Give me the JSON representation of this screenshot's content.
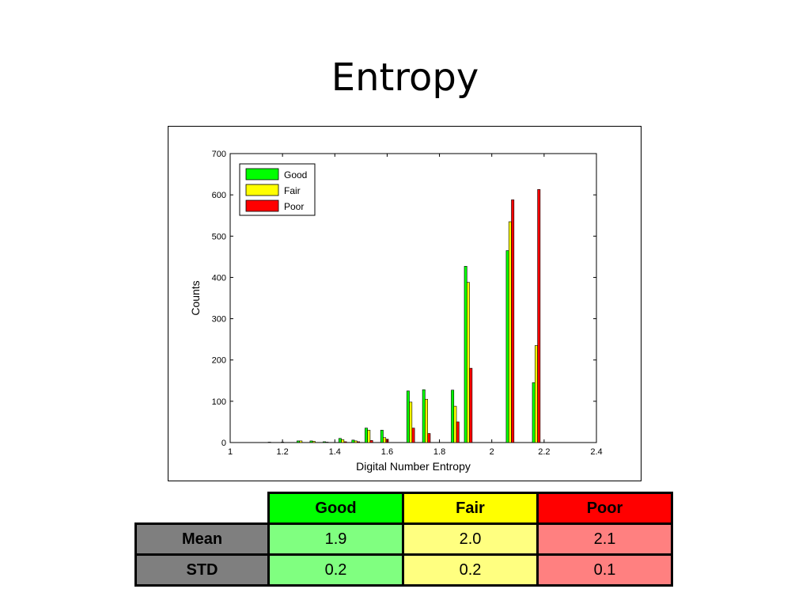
{
  "slide": {
    "title": "Entropy"
  },
  "chart_data": {
    "type": "bar",
    "title": "",
    "xlabel": "Digital Number Entropy",
    "ylabel": "Counts",
    "xlim": [
      1,
      2.4
    ],
    "ylim": [
      0,
      700
    ],
    "xticks": [
      1,
      1.2,
      1.4,
      1.6,
      1.8,
      2,
      2.2,
      2.4
    ],
    "xtick_labels": [
      "1",
      "1.2",
      "1.4",
      "1.6",
      "1.8",
      "2",
      "2.2",
      "2.4"
    ],
    "yticks": [
      0,
      100,
      200,
      300,
      400,
      500,
      600,
      700
    ],
    "ytick_labels": [
      "0",
      "100",
      "200",
      "300",
      "400",
      "500",
      "600",
      "700"
    ],
    "legend_position": "top-left",
    "grid": false,
    "x": [
      1.16,
      1.21,
      1.27,
      1.32,
      1.37,
      1.43,
      1.48,
      1.53,
      1.59,
      1.69,
      1.75,
      1.86,
      1.91,
      2.07,
      2.17
    ],
    "series": [
      {
        "name": "Good",
        "color": "#00ff00",
        "values": [
          1,
          1,
          4,
          4,
          2,
          10,
          6,
          35,
          30,
          125,
          128,
          127,
          427,
          465,
          145
        ]
      },
      {
        "name": "Fair",
        "color": "#ffff00",
        "values": [
          0,
          0,
          4,
          3,
          1,
          7,
          4,
          30,
          12,
          98,
          105,
          88,
          388,
          535,
          235
        ]
      },
      {
        "name": "Poor",
        "color": "#ff0000",
        "values": [
          0,
          0,
          0,
          0,
          0,
          2,
          2,
          5,
          8,
          35,
          22,
          50,
          180,
          588,
          613
        ]
      }
    ]
  },
  "stats_table": {
    "headers": [
      {
        "label": "Good",
        "color": "#00ff00"
      },
      {
        "label": "Fair",
        "color": "#ffff00"
      },
      {
        "label": "Poor",
        "color": "#ff0000"
      }
    ],
    "rows": [
      {
        "label": "Mean",
        "values": [
          "1.9",
          "2.0",
          "2.1"
        ]
      },
      {
        "label": "STD",
        "values": [
          "0.2",
          "0.2",
          "0.1"
        ]
      }
    ],
    "cell_colors": [
      "#80ff80",
      "#ffff80",
      "#ff8080"
    ]
  }
}
